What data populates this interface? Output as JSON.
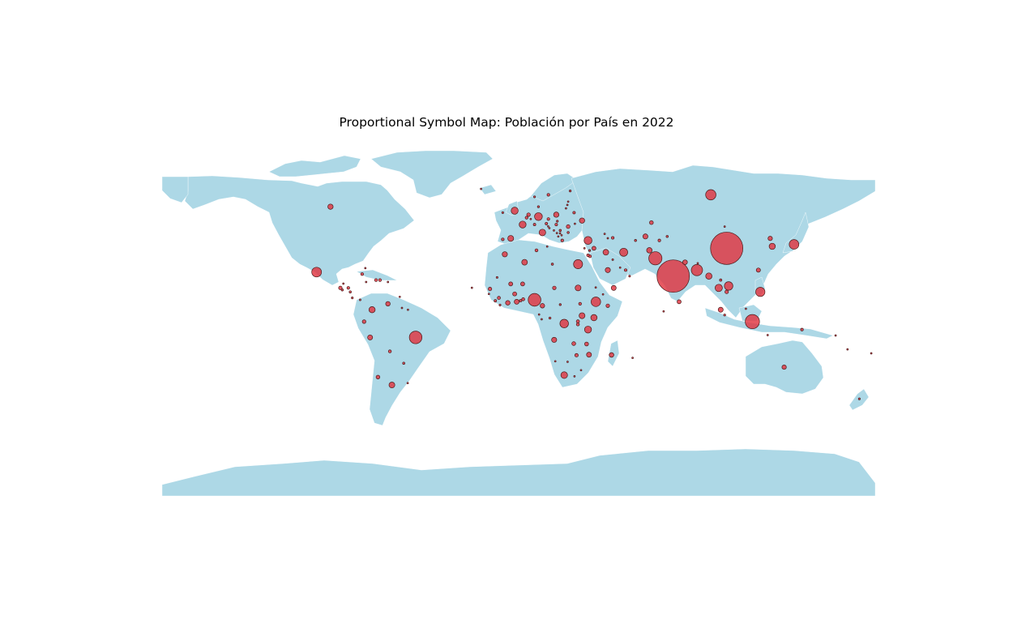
{
  "title": "Proportional Symbol Map: Población por País en 2022",
  "colors": {
    "land": "#add8e6",
    "symbol": "#e0353f",
    "symbol_edge": "#4a1a1a",
    "background": "#ffffff"
  },
  "chart_data": {
    "type": "scatter",
    "title": "Proportional Symbol Map: Población por País en 2022",
    "xlim": [
      -180,
      180
    ],
    "ylim": [
      -90,
      90
    ],
    "grid": false,
    "size_variable": "population (millions, estimated)",
    "points": [
      {
        "lon": 105,
        "lat": 35,
        "pop": 1412
      },
      {
        "lon": 78,
        "lat": 21,
        "pop": 1417
      },
      {
        "lon": -52,
        "lat": -10,
        "pop": 215
      },
      {
        "lon": -102,
        "lat": 23,
        "pop": 128
      },
      {
        "lon": -95,
        "lat": 56,
        "pop": 38
      },
      {
        "lon": 97,
        "lat": 62,
        "pop": 144
      },
      {
        "lon": 118,
        "lat": -2,
        "pop": 275
      },
      {
        "lon": 69,
        "lat": 30,
        "pop": 235
      },
      {
        "lon": 90,
        "lat": 24,
        "pop": 171
      },
      {
        "lon": 8,
        "lat": 9,
        "pop": 218
      },
      {
        "lon": 139,
        "lat": 37,
        "pop": 125
      },
      {
        "lon": 122,
        "lat": 13,
        "pop": 115
      },
      {
        "lon": 106,
        "lat": 16,
        "pop": 98
      },
      {
        "lon": 39,
        "lat": 8,
        "pop": 123
      },
      {
        "lon": 30,
        "lat": 27,
        "pop": 111
      },
      {
        "lon": 35,
        "lat": 39,
        "pop": 85
      },
      {
        "lon": 53,
        "lat": 33,
        "pop": 88
      },
      {
        "lon": 10,
        "lat": 51,
        "pop": 83
      },
      {
        "lon": 2,
        "lat": 47,
        "pop": 65
      },
      {
        "lon": -2,
        "lat": 54,
        "pop": 67
      },
      {
        "lon": 12,
        "lat": 43,
        "pop": 59
      },
      {
        "lon": -4,
        "lat": 40,
        "pop": 47
      },
      {
        "lon": 23,
        "lat": -29,
        "pop": 60
      },
      {
        "lon": 23,
        "lat": -3,
        "pop": 99
      },
      {
        "lon": 35,
        "lat": -6,
        "pop": 65
      },
      {
        "lon": 38,
        "lat": 0,
        "pop": 54
      },
      {
        "lon": 32,
        "lat": 1,
        "pop": 47
      },
      {
        "lon": 30,
        "lat": 15,
        "pop": 46
      },
      {
        "lon": 3,
        "lat": 28,
        "pop": 44
      },
      {
        "lon": -7,
        "lat": 32,
        "pop": 37
      },
      {
        "lon": 44,
        "lat": 33,
        "pop": 44
      },
      {
        "lon": 45,
        "lat": 24,
        "pop": 36
      },
      {
        "lon": 48,
        "lat": 15,
        "pop": 33
      },
      {
        "lon": 66,
        "lat": 34,
        "pop": 41
      },
      {
        "lon": 64,
        "lat": 41,
        "pop": 35
      },
      {
        "lon": 96,
        "lat": 21,
        "pop": 54
      },
      {
        "lon": 101,
        "lat": 15,
        "pop": 72
      },
      {
        "lon": 128,
        "lat": 36,
        "pop": 52
      },
      {
        "lon": 127,
        "lat": 40,
        "pop": 26
      },
      {
        "lon": 84,
        "lat": 28,
        "pop": 30
      },
      {
        "lon": 81,
        "lat": 8,
        "pop": 22
      },
      {
        "lon": 102,
        "lat": 4,
        "pop": 33
      },
      {
        "lon": 121,
        "lat": 24,
        "pop": 24
      },
      {
        "lon": -74,
        "lat": 4,
        "pop": 52
      },
      {
        "lon": -64,
        "lat": -34,
        "pop": 46
      },
      {
        "lon": -75,
        "lat": -10,
        "pop": 34
      },
      {
        "lon": -66,
        "lat": 7,
        "pop": 28
      },
      {
        "lon": -71,
        "lat": -30,
        "pop": 19
      },
      {
        "lon": -78,
        "lat": -2,
        "pop": 18
      },
      {
        "lon": -65,
        "lat": -17,
        "pop": 12
      },
      {
        "lon": -58,
        "lat": -23,
        "pop": 7
      },
      {
        "lon": -56,
        "lat": -33,
        "pop": 3.4
      },
      {
        "lon": -90,
        "lat": 15,
        "pop": 17
      },
      {
        "lon": -86,
        "lat": 15,
        "pop": 10
      },
      {
        "lon": -89,
        "lat": 14,
        "pop": 6.3
      },
      {
        "lon": -85,
        "lat": 13,
        "pop": 6.9
      },
      {
        "lon": -84,
        "lat": 10,
        "pop": 5.2
      },
      {
        "lon": -80,
        "lat": 9,
        "pop": 4.4
      },
      {
        "lon": -79,
        "lat": 22,
        "pop": 11
      },
      {
        "lon": -72,
        "lat": 19,
        "pop": 11.6
      },
      {
        "lon": -70,
        "lat": 19,
        "pop": 11.2
      },
      {
        "lon": -77,
        "lat": 18,
        "pop": 2.8
      },
      {
        "lon": -66,
        "lat": 18,
        "pop": 3.2
      },
      {
        "lon": 19,
        "lat": 52,
        "pop": 38
      },
      {
        "lon": 32,
        "lat": 49,
        "pop": 38
      },
      {
        "lon": 25,
        "lat": 46,
        "pop": 19
      },
      {
        "lon": 5,
        "lat": 52,
        "pop": 17.5
      },
      {
        "lon": 4,
        "lat": 50.5,
        "pop": 11.6
      },
      {
        "lon": 15,
        "lat": 62,
        "pop": 10.4
      },
      {
        "lon": 8,
        "lat": 61,
        "pop": 5.4
      },
      {
        "lon": 26,
        "lat": 64,
        "pop": 5.5
      },
      {
        "lon": 10,
        "lat": 56,
        "pop": 5.9
      },
      {
        "lon": 22,
        "lat": 39,
        "pop": 10.4
      },
      {
        "lon": -8,
        "lat": 39.5,
        "pop": 10.3
      },
      {
        "lon": 15,
        "lat": 49.8,
        "pop": 10.5
      },
      {
        "lon": 19,
        "lat": 47,
        "pop": 9.7
      },
      {
        "lon": 14,
        "lat": 47.5,
        "pop": 9
      },
      {
        "lon": 8,
        "lat": 47,
        "pop": 8.7
      },
      {
        "lon": 28,
        "lat": 53,
        "pop": 9.2
      },
      {
        "lon": 21,
        "lat": 44,
        "pop": 6.7
      },
      {
        "lon": 25,
        "lat": 43,
        "pop": 6.5
      },
      {
        "lon": -8,
        "lat": 53,
        "pop": 5
      },
      {
        "lon": 19.5,
        "lat": 48.7,
        "pop": 5.4
      },
      {
        "lon": 15.5,
        "lat": 45.2,
        "pop": 3.9
      },
      {
        "lon": 17.8,
        "lat": 44,
        "pop": 3.2
      },
      {
        "lon": 20,
        "lat": 41,
        "pop": 2.8
      },
      {
        "lon": 23.9,
        "lat": 55.2,
        "pop": 2.8
      },
      {
        "lon": 24.6,
        "lat": 56.9,
        "pop": 1.9
      },
      {
        "lon": 25,
        "lat": 58.6,
        "pop": 1.3
      },
      {
        "lon": 28.4,
        "lat": 47.4,
        "pop": 2.6
      },
      {
        "lon": -19,
        "lat": 65,
        "pop": 0.37
      },
      {
        "lon": 47.5,
        "lat": 40.3,
        "pop": 10.1
      },
      {
        "lon": 43.4,
        "lat": 42.3,
        "pop": 3.7
      },
      {
        "lon": 45,
        "lat": 40.1,
        "pop": 2.8
      },
      {
        "lon": 38,
        "lat": 35,
        "pop": 22
      },
      {
        "lon": 36,
        "lat": 31,
        "pop": 11
      },
      {
        "lon": 35,
        "lat": 31.5,
        "pop": 9.5
      },
      {
        "lon": 35.8,
        "lat": 33.9,
        "pop": 5.5
      },
      {
        "lon": 54,
        "lat": 24,
        "pop": 9.4
      },
      {
        "lon": 56,
        "lat": 21,
        "pop": 4.6
      },
      {
        "lon": 47.5,
        "lat": 29.3,
        "pop": 4.3
      },
      {
        "lon": 51.2,
        "lat": 25.3,
        "pop": 2.7
      },
      {
        "lon": 67,
        "lat": 48,
        "pop": 19.6
      },
      {
        "lon": 59,
        "lat": 39,
        "pop": 6.4
      },
      {
        "lon": 71,
        "lat": 39,
        "pop": 9.9
      },
      {
        "lon": 75,
        "lat": 41,
        "pop": 6.7
      },
      {
        "lon": 104,
        "lat": 46,
        "pop": 3.4
      },
      {
        "lon": 105,
        "lat": 13,
        "pop": 16.8
      },
      {
        "lon": 102,
        "lat": 19,
        "pop": 7.5
      },
      {
        "lon": 90.4,
        "lat": 27.5,
        "pop": 0.8
      },
      {
        "lon": 104,
        "lat": 1.35,
        "pop": 5.6
      },
      {
        "lon": 143,
        "lat": -6,
        "pop": 10
      },
      {
        "lon": 134,
        "lat": -25,
        "pop": 26
      },
      {
        "lon": 172,
        "lat": -41,
        "pop": 5.1
      },
      {
        "lon": 178,
        "lat": -18,
        "pop": 0.9
      },
      {
        "lon": 160,
        "lat": -9,
        "pop": 0.7
      },
      {
        "lon": 166,
        "lat": -16,
        "pop": 0.3
      },
      {
        "lon": 125.7,
        "lat": -8.8,
        "pop": 1.3
      },
      {
        "lon": 114.7,
        "lat": 4.5,
        "pop": 0.45
      },
      {
        "lon": 9,
        "lat": 34,
        "pop": 12
      },
      {
        "lon": 17,
        "lat": 27,
        "pop": 6.8
      },
      {
        "lon": 2,
        "lat": 17,
        "pop": 22
      },
      {
        "lon": -4,
        "lat": 17,
        "pop": 22
      },
      {
        "lon": -2,
        "lat": 12,
        "pop": 22
      },
      {
        "lon": -1,
        "lat": 8,
        "pop": 33
      },
      {
        "lon": -5.5,
        "lat": 7.5,
        "pop": 28
      },
      {
        "lon": 12,
        "lat": 6,
        "pop": 28
      },
      {
        "lon": 18,
        "lat": 15,
        "pop": 17.7
      },
      {
        "lon": -14.5,
        "lat": 14.5,
        "pop": 17
      },
      {
        "lon": -10,
        "lat": 10,
        "pop": 13.5
      },
      {
        "lon": 2.3,
        "lat": 9.3,
        "pop": 13
      },
      {
        "lon": 29.9,
        "lat": -1.9,
        "pop": 13.8
      },
      {
        "lon": 29.9,
        "lat": -3.4,
        "pop": 12.9
      },
      {
        "lon": 31,
        "lat": 7,
        "pop": 11
      },
      {
        "lon": 17.9,
        "lat": -11.2,
        "pop": 35.6
      },
      {
        "lon": 35.5,
        "lat": -18.7,
        "pop": 33
      },
      {
        "lon": 46.9,
        "lat": -18.8,
        "pop": 29.6
      },
      {
        "lon": 34.3,
        "lat": -13.3,
        "pop": 20.4
      },
      {
        "lon": 27.8,
        "lat": -13.1,
        "pop": 20
      },
      {
        "lon": 29.2,
        "lat": -19,
        "pop": 16.3
      },
      {
        "lon": 45,
        "lat": 6,
        "pop": 17.6
      },
      {
        "lon": 15.8,
        "lat": -0.2,
        "pop": 6
      },
      {
        "lon": -11.8,
        "lat": 8.5,
        "pop": 8.6
      },
      {
        "lon": -9.4,
        "lat": 6.4,
        "pop": 5.3
      },
      {
        "lon": 1,
        "lat": 8.6,
        "pop": 8.8
      },
      {
        "lon": -10.9,
        "lat": 20.3,
        "pop": 4.7
      },
      {
        "lon": -15,
        "lat": 12,
        "pop": 2.1
      },
      {
        "lon": 38.9,
        "lat": 15.2,
        "pop": 3.7
      },
      {
        "lon": 21,
        "lat": 6.6,
        "pop": 5.6
      },
      {
        "lon": 11.6,
        "lat": -0.8,
        "pop": 2.4
      },
      {
        "lon": 10.3,
        "lat": 1.6,
        "pop": 1.7
      },
      {
        "lon": 18.5,
        "lat": -22,
        "pop": 2.6
      },
      {
        "lon": 24.7,
        "lat": -22.3,
        "pop": 2.6
      },
      {
        "lon": 28.2,
        "lat": -29.6,
        "pop": 2.3
      },
      {
        "lon": 31.5,
        "lat": -26.5,
        "pop": 1.2
      },
      {
        "lon": 42.6,
        "lat": 11.8,
        "pop": 1.1
      },
      {
        "lon": 57.5,
        "lat": -20.3,
        "pop": 1.3
      },
      {
        "lon": 73.2,
        "lat": 3.2,
        "pop": 0.5
      },
      {
        "lon": -23.6,
        "lat": 15.1,
        "pop": 0.6
      },
      {
        "lon": -60,
        "lat": 10.5,
        "pop": 1.5
      },
      {
        "lon": -58.9,
        "lat": 4.9,
        "pop": 0.8
      },
      {
        "lon": -55.9,
        "lat": 4,
        "pop": 0.6
      },
      {
        "lon": -88.5,
        "lat": 17.2,
        "pop": 0.4
      },
      {
        "lon": -77.4,
        "lat": 25,
        "pop": 0.4
      },
      {
        "lon": 14.4,
        "lat": 35.9,
        "pop": 0.5
      },
      {
        "lon": 33.2,
        "lat": 35,
        "pop": 1.2
      },
      {
        "lon": 6.1,
        "lat": 49.8,
        "pop": 0.65
      },
      {
        "lon": 14.9,
        "lat": 46.1,
        "pop": 2.1
      },
      {
        "lon": 21.7,
        "lat": 41.6,
        "pop": 2.1
      },
      {
        "lon": 19.3,
        "lat": 42.7,
        "pop": 0.6
      },
      {
        "lon": 20.9,
        "lat": 42.6,
        "pop": 1.8
      }
    ]
  }
}
